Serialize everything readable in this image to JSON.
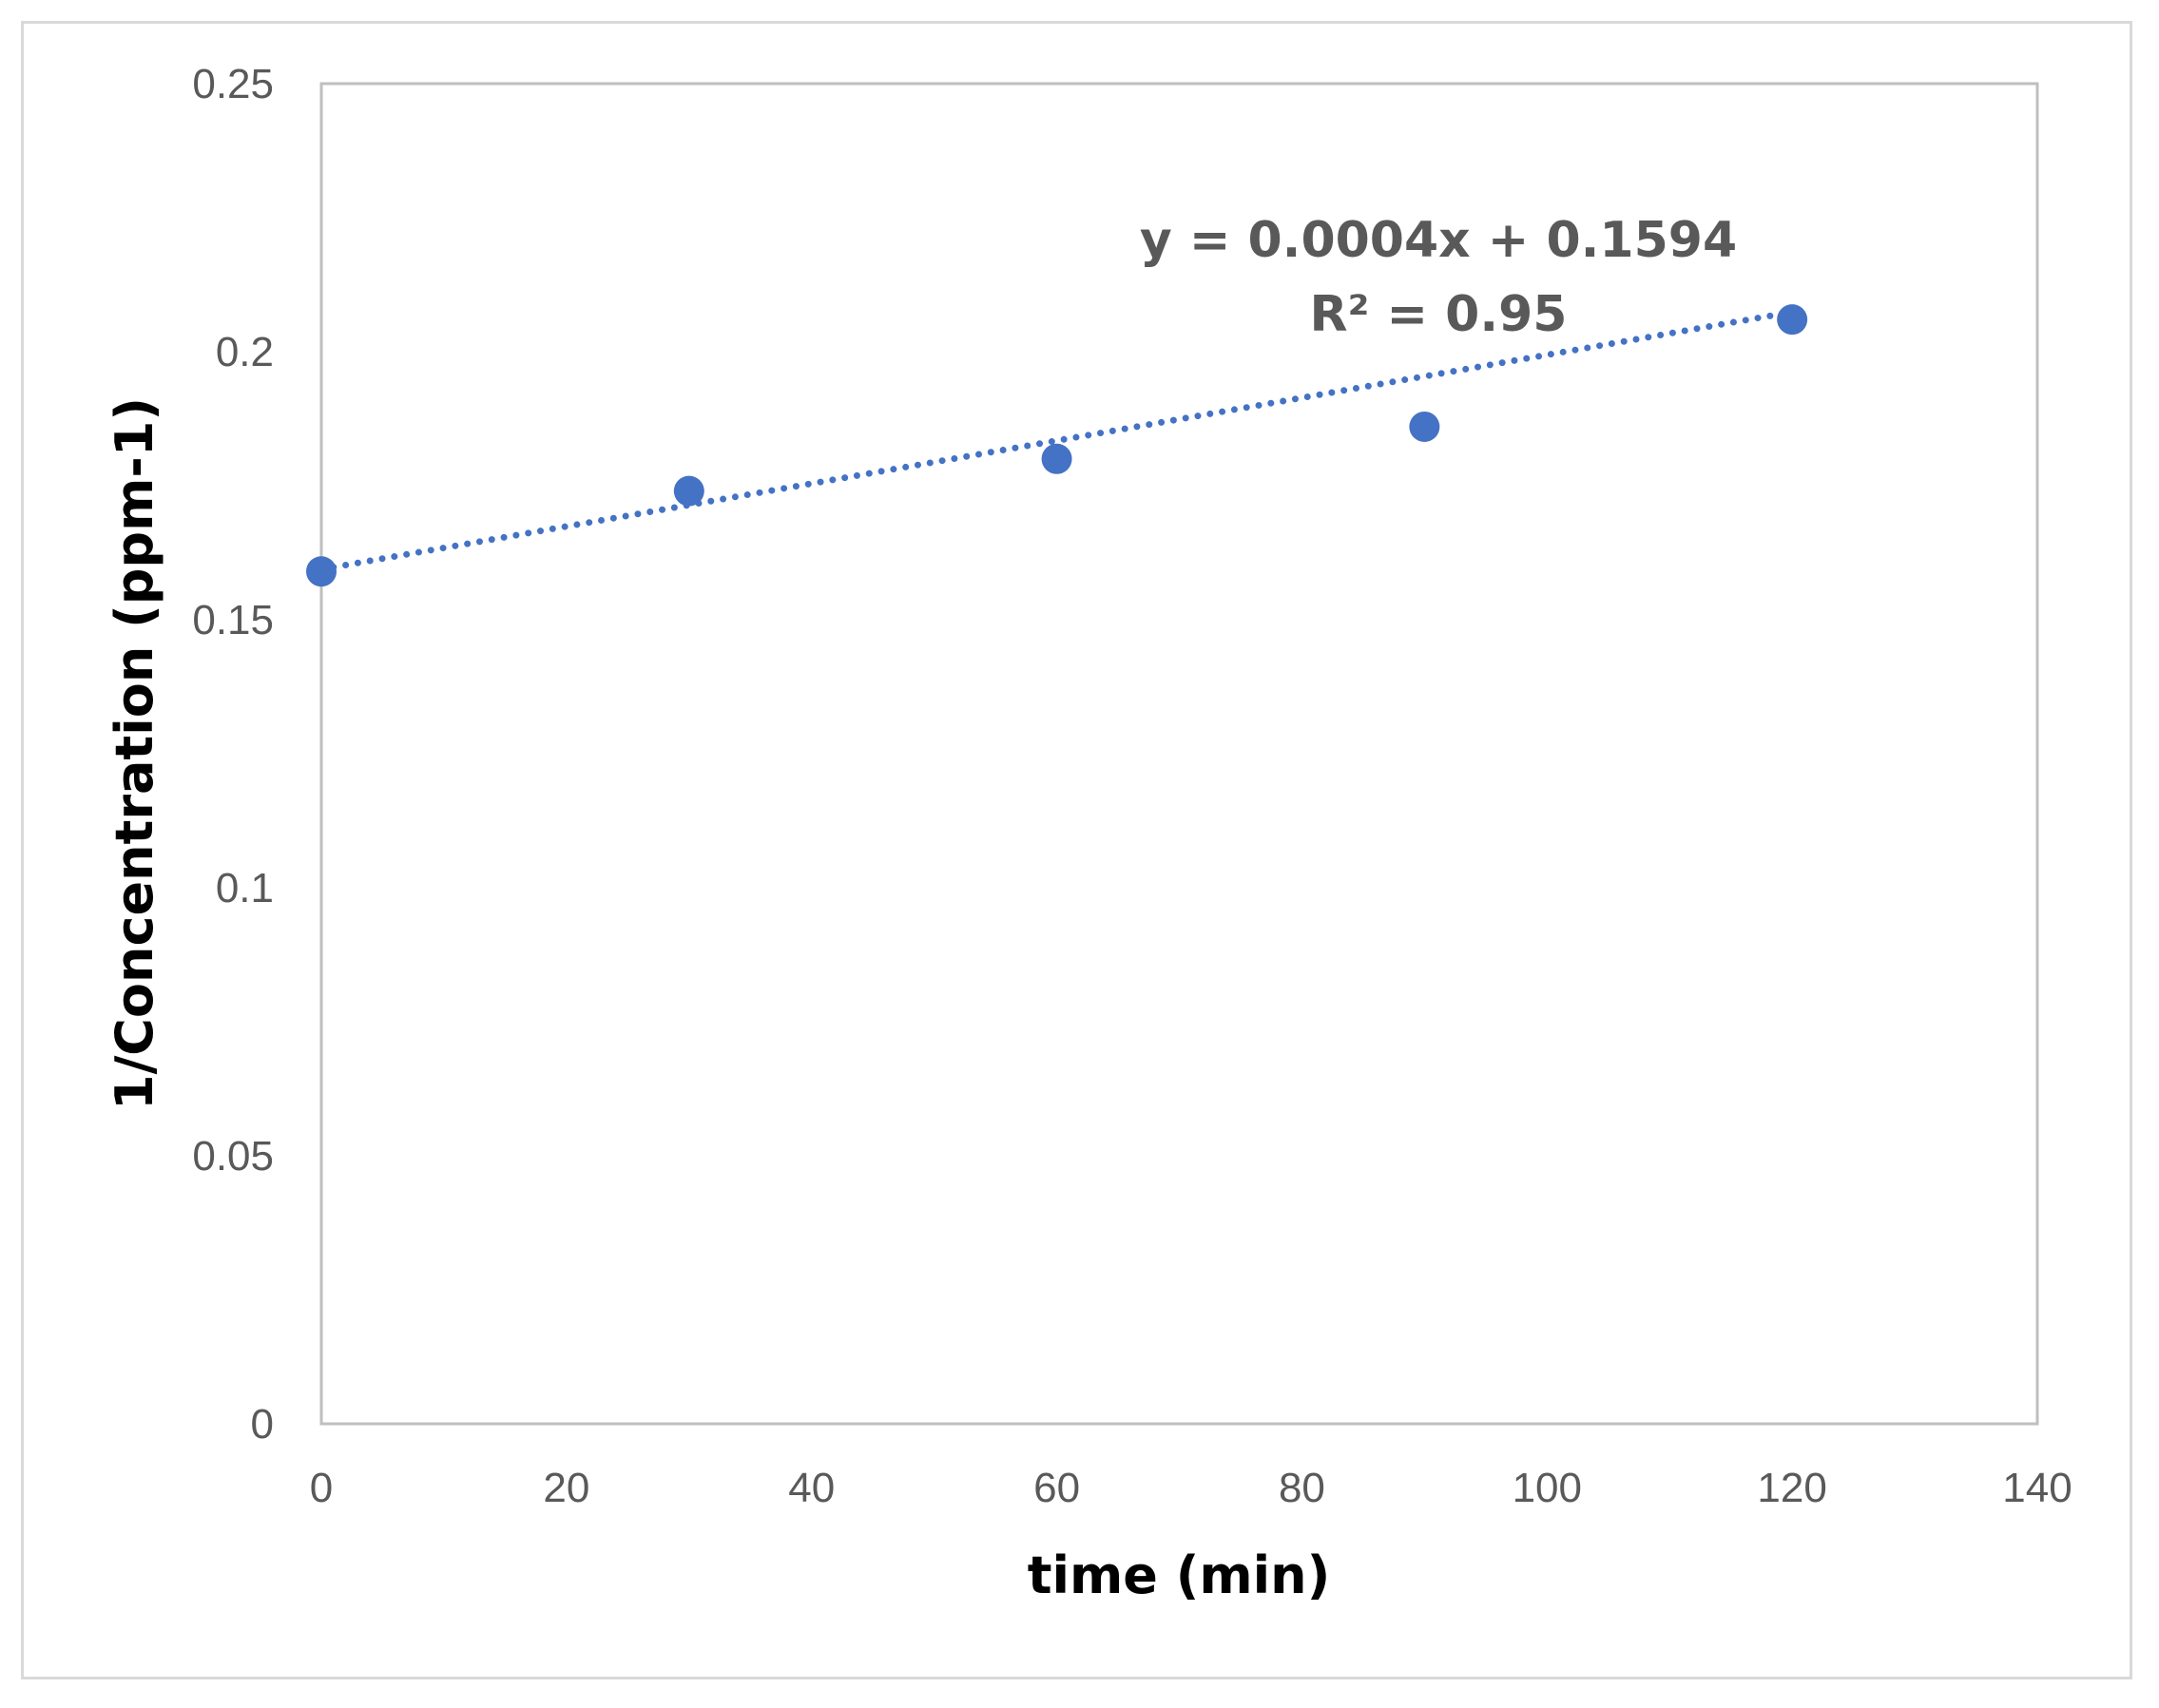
{
  "chart_data": {
    "type": "scatter",
    "title": "",
    "xlabel": "time (min)",
    "ylabel": "1/Concentration (ppm-1)",
    "xlim": [
      0,
      140
    ],
    "ylim": [
      0,
      0.25
    ],
    "xticks": [
      "0",
      "20",
      "40",
      "60",
      "80",
      "100",
      "120",
      "140"
    ],
    "yticks": [
      "0",
      "0.05",
      "0.1",
      "0.15",
      "0.2",
      "0.25"
    ],
    "grid": false,
    "legend": "none",
    "series": [
      {
        "x": [
          0,
          30,
          60,
          90,
          120
        ],
        "y": [
          0.159,
          0.174,
          0.18,
          0.186,
          0.206
        ],
        "color": "#4472c4"
      }
    ],
    "trendline": {
      "type": "linear",
      "slope": 0.0004,
      "intercept": 0.1594,
      "x_range": [
        0,
        120
      ],
      "style": "dotted",
      "color": "#4472c4",
      "equation_label": "y = 0.0004x + 0.1594",
      "r2_label": "R² = 0.95"
    }
  }
}
